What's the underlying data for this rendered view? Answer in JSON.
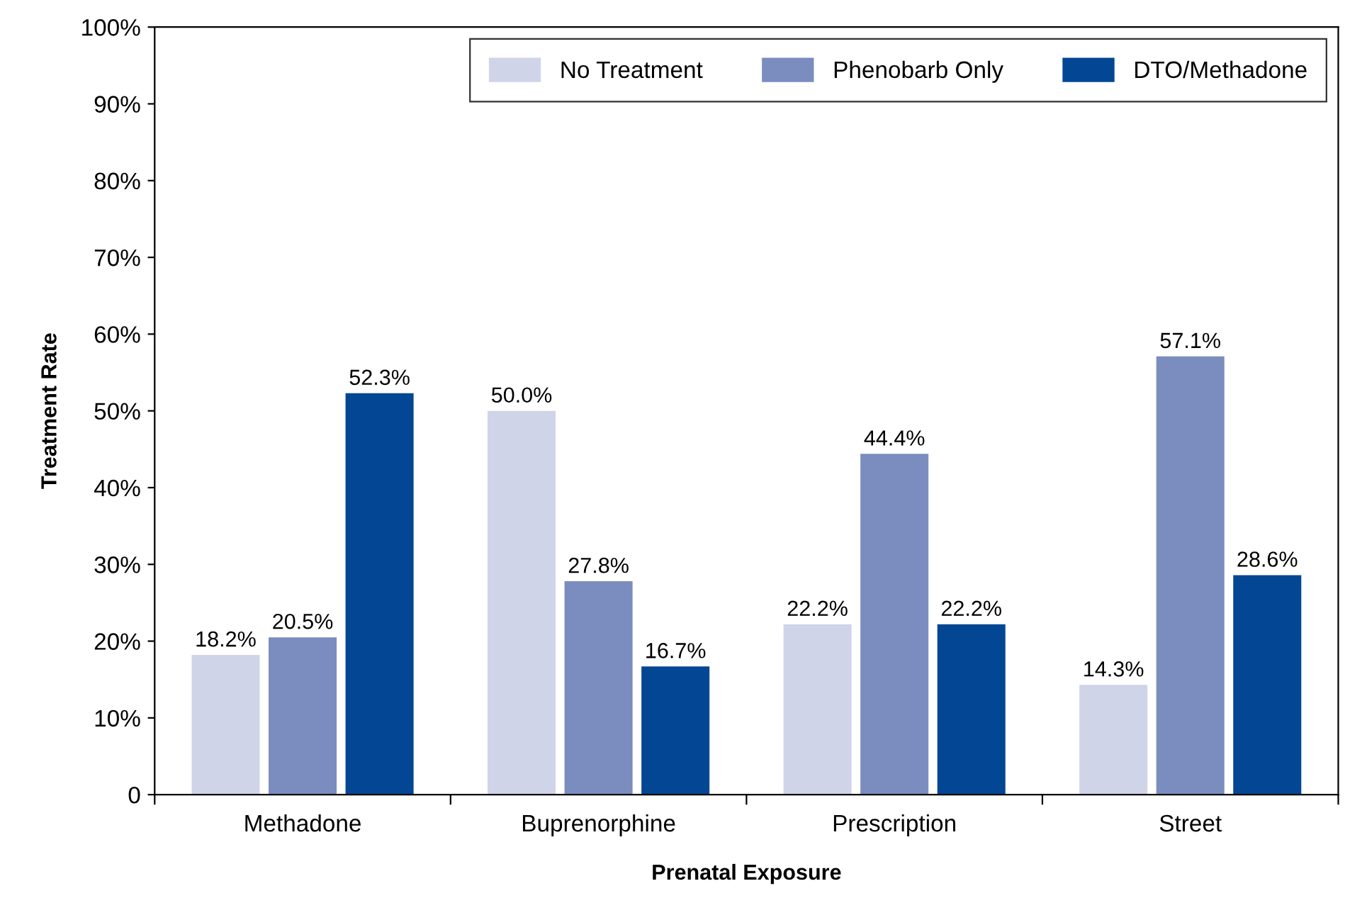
{
  "chart_data": {
    "type": "bar",
    "xlabel": "Prenatal Exposure",
    "ylabel": "Treatment Rate",
    "categories": [
      "Methadone",
      "Buprenorphine",
      "Prescription",
      "Street"
    ],
    "series": [
      {
        "name": "No Treatment",
        "color": "#d0d4e8",
        "values": [
          18.2,
          50.0,
          22.2,
          14.3
        ],
        "value_labels": [
          "18.2%",
          "50.0%",
          "22.2%",
          "14.3%"
        ]
      },
      {
        "name": "Phenobarb Only",
        "color": "#7b8cbf",
        "values": [
          20.5,
          27.8,
          44.4,
          57.1
        ],
        "value_labels": [
          "20.5%",
          "27.8%",
          "44.4%",
          "57.1%"
        ]
      },
      {
        "name": "DTO/Methadone",
        "color": "#034694",
        "values": [
          52.3,
          16.7,
          22.2,
          28.6
        ],
        "value_labels": [
          "52.3%",
          "16.7%",
          "22.2%",
          "28.6%"
        ]
      }
    ],
    "ylim": [
      0,
      100
    ],
    "yticks": [
      0,
      {
        "value": 10,
        "label": "10%"
      },
      {
        "value": 20,
        "label": "20%"
      },
      {
        "value": 30,
        "label": "30%"
      },
      {
        "value": 40,
        "label": "40%"
      },
      {
        "value": 50,
        "label": "50%"
      },
      {
        "value": 60,
        "label": "60%"
      },
      {
        "value": 70,
        "label": "70%"
      },
      {
        "value": 80,
        "label": "80%"
      },
      {
        "value": 90,
        "label": "90%"
      },
      {
        "value": 100,
        "label": "100%"
      }
    ],
    "legend": "top right",
    "grid": false
  }
}
